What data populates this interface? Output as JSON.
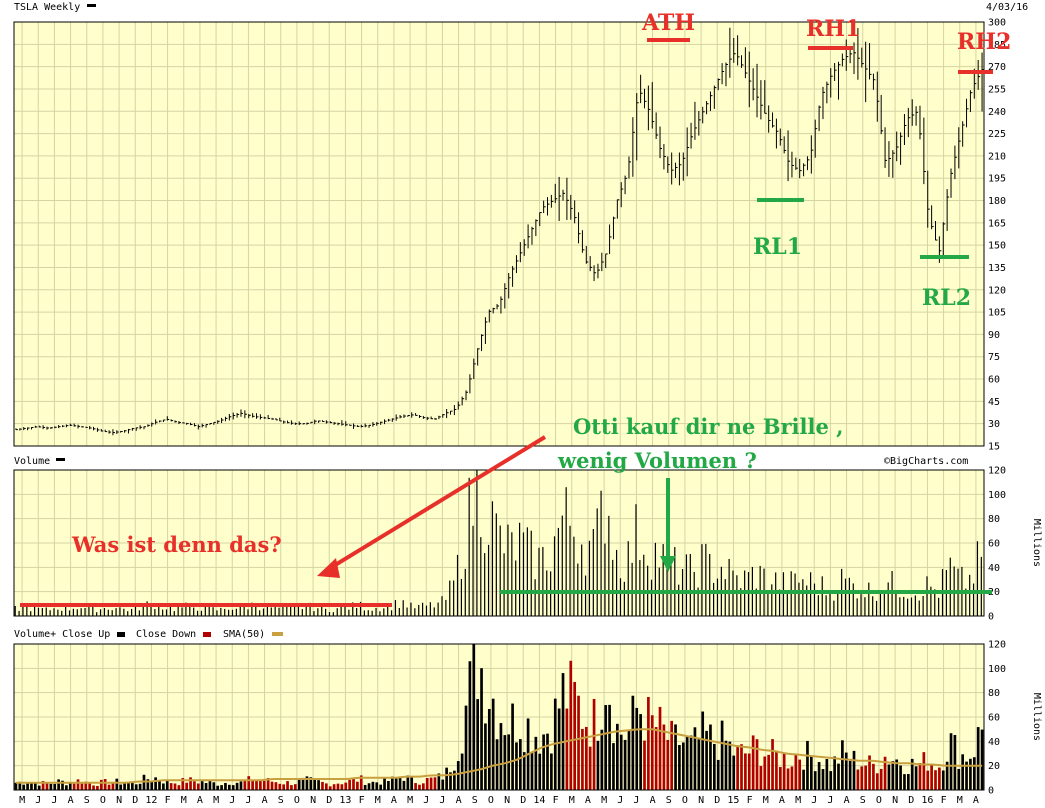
{
  "colors": {
    "panel_bg": "#ffffcc",
    "grid": "#d6d3a3",
    "up": "#000000",
    "down": "#b00000",
    "sma": "#c8a040",
    "red_annotation": "#e8302a",
    "green_annotation": "#22a844"
  },
  "header": {
    "symbol_title": "TSLA Weekly",
    "date": "4/03/16",
    "credit": "©BigCharts.com"
  },
  "chart_data": [
    {
      "id": "price",
      "type": "ohlc",
      "title": "TSLA Weekly",
      "ylim": [
        15,
        300
      ],
      "ytick_labels": [
        "300",
        "285",
        "270",
        "255",
        "240",
        "225",
        "210",
        "195",
        "180",
        "165",
        "150",
        "135",
        "120",
        "105",
        "90",
        "75",
        "60",
        "45",
        "30",
        "15"
      ],
      "x_tick_labels": [
        "M",
        "J",
        "J",
        "A",
        "S",
        "O",
        "N",
        "D",
        "12",
        "F",
        "M",
        "A",
        "M",
        "J",
        "J",
        "A",
        "S",
        "O",
        "N",
        "D",
        "13",
        "F",
        "M",
        "A",
        "M",
        "J",
        "J",
        "A",
        "S",
        "O",
        "N",
        "D",
        "14",
        "F",
        "M",
        "A",
        "M",
        "J",
        "J",
        "A",
        "S",
        "O",
        "N",
        "D",
        "15",
        "F",
        "M",
        "A",
        "M",
        "J",
        "J",
        "A",
        "S",
        "O",
        "N",
        "D",
        "16",
        "F",
        "M",
        "A"
      ],
      "close_series": [
        26,
        27,
        28,
        27,
        28,
        29,
        28,
        27,
        25,
        24,
        25,
        27,
        28,
        31,
        33,
        31,
        30,
        28,
        30,
        32,
        35,
        37,
        35,
        34,
        33,
        31,
        30,
        30,
        32,
        31,
        30,
        29,
        28,
        29,
        31,
        33,
        35,
        36,
        34,
        33,
        37,
        40,
        52,
        80,
        105,
        110,
        130,
        145,
        160,
        175,
        180,
        185,
        170,
        140,
        130,
        145,
        180,
        200,
        255,
        240,
        215,
        200,
        205,
        225,
        240,
        255,
        270,
        280,
        265,
        250,
        235,
        225,
        205,
        200,
        210,
        250,
        265,
        275,
        280,
        270,
        260,
        205,
        215,
        235,
        240,
        170,
        145,
        195,
        225,
        255,
        268
      ],
      "annotations": [
        {
          "label": "ATH",
          "color": "red",
          "value": 291
        },
        {
          "label": "RH1",
          "color": "red",
          "value": 282
        },
        {
          "label": "RH2",
          "color": "red",
          "value": 267
        },
        {
          "label": "RL1",
          "color": "green",
          "value": 181
        },
        {
          "label": "RL2",
          "color": "green",
          "value": 141
        }
      ]
    },
    {
      "id": "volume",
      "type": "bar",
      "title": "Volume",
      "ylim": [
        0,
        120
      ],
      "ylabel": "Millions",
      "ytick_labels": [
        "120",
        "100",
        "80",
        "60",
        "40",
        "20",
        "0"
      ],
      "series": [
        {
          "values": [
            6,
            7,
            6,
            5,
            7,
            6,
            8,
            5,
            6,
            7,
            6,
            5,
            9,
            10,
            7,
            6,
            8,
            7,
            6,
            5,
            7,
            6,
            9,
            8,
            7,
            6,
            6,
            8,
            7,
            5,
            6,
            7,
            9,
            6,
            7,
            8,
            12,
            7,
            8,
            9,
            12,
            30,
            70,
            110,
            85,
            65,
            55,
            60,
            50,
            45,
            55,
            80,
            75,
            60,
            55,
            100,
            50,
            45,
            70,
            55,
            50,
            40,
            40,
            35,
            45,
            40,
            40,
            30,
            30,
            35,
            30,
            28,
            25,
            30,
            28,
            25,
            20,
            30,
            25,
            22,
            20,
            28,
            25,
            22,
            20,
            25,
            20,
            40,
            28,
            30,
            50
          ]
        }
      ],
      "annotations": [
        {
          "label": "Was ist denn das?",
          "color": "red",
          "value": 10
        },
        {
          "label": "Otti kauf dir ne Brille ,",
          "color": "green"
        },
        {
          "label": "wenig Volumen ?",
          "color": "green",
          "value": 20
        }
      ]
    },
    {
      "id": "volume_close",
      "type": "bar",
      "title": "Volume+ Close Up",
      "legend": [
        "Volume+ Close Up",
        "Close Down",
        "SMA(50)"
      ],
      "ylim": [
        0,
        120
      ],
      "ylabel": "Millions",
      "ytick_labels": [
        "120",
        "100",
        "80",
        "60",
        "40",
        "20",
        "0"
      ],
      "sma_series": [
        6,
        6,
        6,
        6,
        6,
        6,
        6,
        6,
        6,
        6,
        7,
        7,
        8,
        8,
        8,
        8,
        8,
        8,
        8,
        8,
        8,
        9,
        9,
        9,
        9,
        9,
        9,
        9,
        10,
        10,
        10,
        10,
        11,
        11,
        12,
        12,
        13,
        15,
        17,
        20,
        22,
        25,
        30,
        35,
        38,
        40,
        42,
        44,
        46,
        48,
        49,
        50,
        50,
        48,
        46,
        44,
        42,
        40,
        38,
        36,
        35,
        33,
        32,
        30,
        29,
        28,
        27,
        26,
        25,
        24,
        24,
        23,
        22,
        22,
        21,
        21,
        20,
        20,
        20,
        20
      ]
    }
  ]
}
